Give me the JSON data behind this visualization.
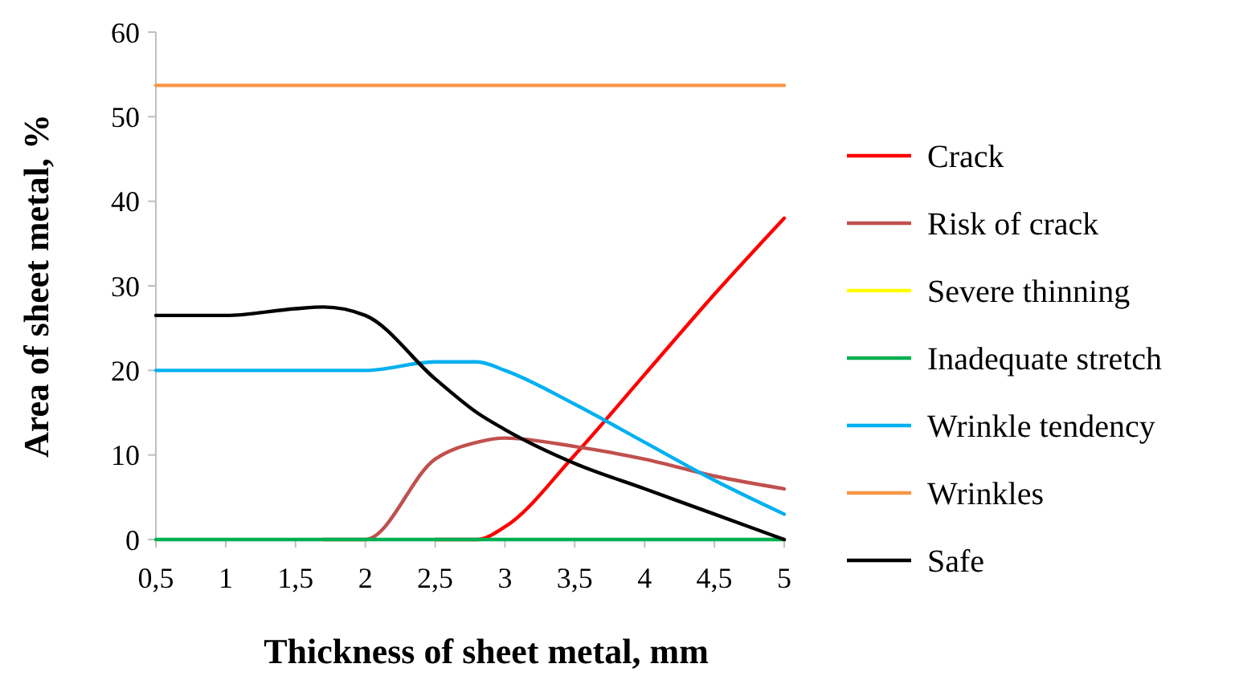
{
  "chart_data": {
    "type": "line",
    "xlabel": "Thickness of sheet metal, mm",
    "ylabel": "Area of sheet metal, %",
    "x": [
      0.5,
      1,
      1.5,
      1.7,
      2,
      2.5,
      2.8,
      3,
      3.5,
      4,
      4.5,
      5
    ],
    "xlim": [
      0.5,
      5
    ],
    "xticks": [
      {
        "value": 0.5,
        "label": "0,5"
      },
      1,
      {
        "value": 1.5,
        "label": "1,5"
      },
      2,
      {
        "value": 2.5,
        "label": "2,5"
      },
      3,
      {
        "value": 3.5,
        "label": "3,5"
      },
      4,
      {
        "value": 4.5,
        "label": "4,5"
      },
      5
    ],
    "ylim": [
      0,
      60
    ],
    "yticks": [
      0,
      10,
      20,
      30,
      40,
      50,
      60
    ],
    "grid": false,
    "legend": "right",
    "marker": "none",
    "line_style": "solid",
    "series": [
      {
        "name": "Crack",
        "color": "#ff0000",
        "values": [
          null,
          null,
          null,
          null,
          null,
          0,
          0,
          1.5,
          10,
          19.5,
          29,
          38
        ]
      },
      {
        "name": "Risk of crack",
        "color": "#c0504d",
        "values": [
          null,
          null,
          null,
          0,
          0,
          9.5,
          11.5,
          12,
          11,
          9.5,
          7.5,
          6
        ]
      },
      {
        "name": "Severe thinning",
        "color": "#ffff00",
        "values": [
          null,
          null,
          null,
          null,
          null,
          null,
          null,
          null,
          null,
          null,
          null,
          null
        ]
      },
      {
        "name": "Inadequate stretch",
        "color": "#00b050",
        "values": [
          0,
          0,
          0,
          0,
          0,
          0,
          0,
          0,
          0,
          0,
          0,
          0
        ]
      },
      {
        "name": "Wrinkle tendency",
        "color": "#00b0f0",
        "values": [
          20,
          20,
          20,
          20,
          20,
          21,
          21,
          20,
          16,
          11.5,
          7,
          3
        ]
      },
      {
        "name": "Wrinkles",
        "color": "#f79646",
        "values": [
          53.7,
          53.7,
          53.7,
          53.7,
          53.7,
          53.7,
          53.7,
          53.7,
          53.7,
          53.7,
          53.7,
          53.7
        ]
      },
      {
        "name": "Safe",
        "color": "#000000",
        "values": [
          26.5,
          26.5,
          27.3,
          27.5,
          26.5,
          19,
          15,
          13,
          9,
          6,
          3,
          0
        ]
      }
    ]
  }
}
